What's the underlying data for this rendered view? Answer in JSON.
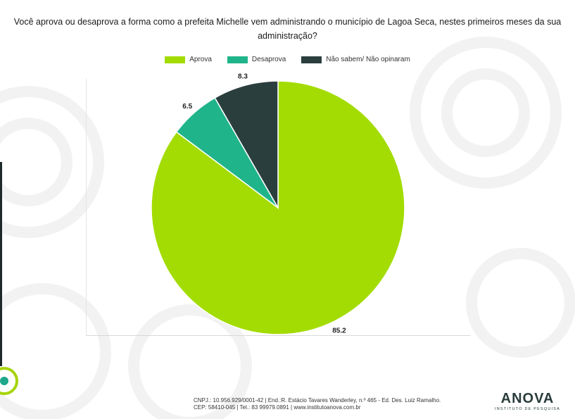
{
  "title": "Você aprova ou desaprova a forma como a prefeita Michelle vem administrando o município de Lagoa Seca, nestes primeiros meses da sua administração?",
  "legend": [
    {
      "label": "Aprova",
      "color": "#a3dc03"
    },
    {
      "label": "Desaprova",
      "color": "#20b48a"
    },
    {
      "label": "Não sabem/ Não opinaram",
      "color": "#2b3e3e"
    }
  ],
  "chart_data": {
    "type": "pie",
    "title": "Você aprova ou desaprova a forma como a prefeita Michelle vem administrando o município de Lagoa Seca, nestes primeiros meses da sua administração?",
    "categories": [
      "Aprova",
      "Desaprova",
      "Não sabem/ Não opinaram"
    ],
    "values": [
      85.2,
      6.5,
      8.3
    ],
    "data_labels": [
      "85.2",
      "6.5",
      "8.3"
    ],
    "colors": [
      "#a3dc03",
      "#20b48a",
      "#2b3e3e"
    ],
    "legend_position": "top"
  },
  "footer": {
    "line1": "CNPJ.: 10.956.929/0001-42 | End.:R. Estácio Tavares Wanderley, n.º 465 - Ed. Des. Luiz Ramalho.",
    "line2": "CEP: 58410-045 | Tel.: 83 99979.0891 | www.institutoanova.com.br"
  },
  "brand": {
    "name": "ANOVA",
    "subtitle": "INSTITUTO DE PESQUISA"
  }
}
